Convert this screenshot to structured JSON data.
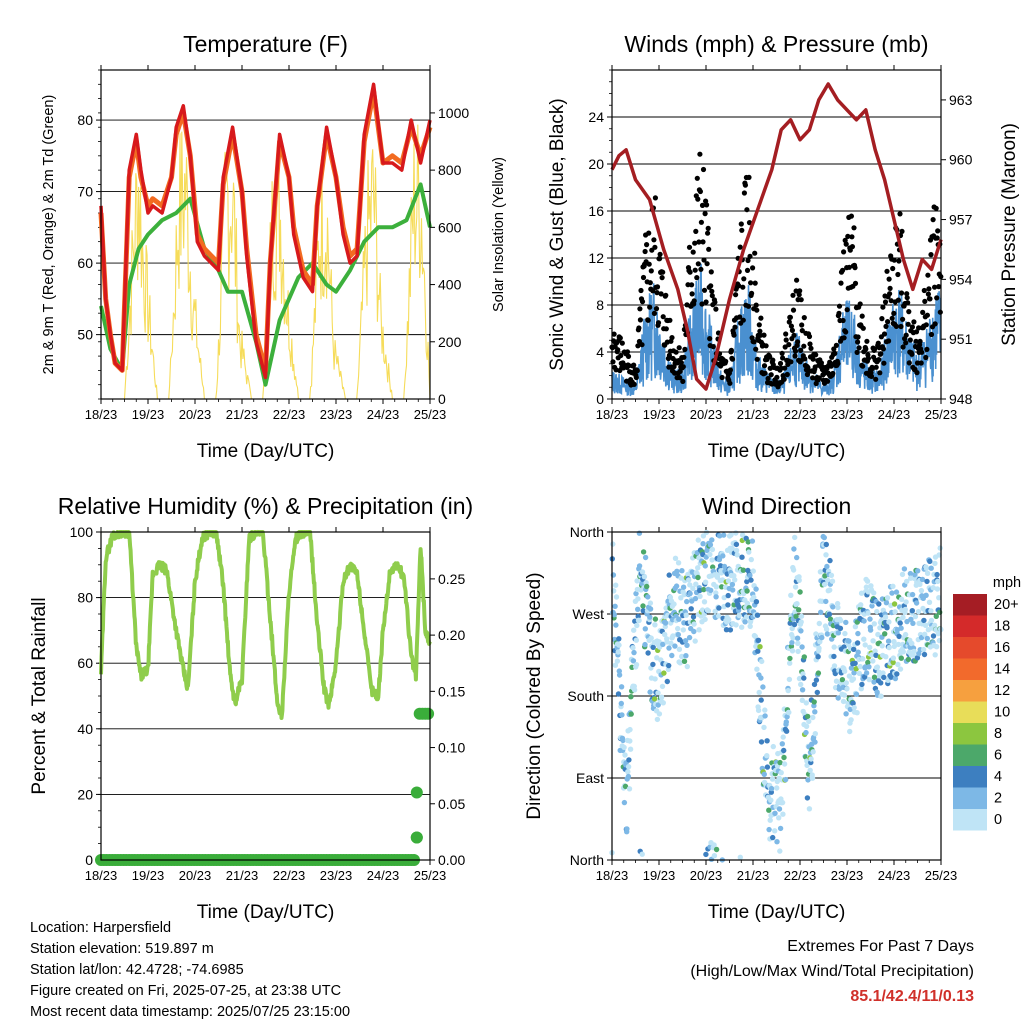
{
  "time_ticks": [
    "18/23",
    "19/23",
    "20/23",
    "21/23",
    "22/23",
    "23/23",
    "24/23",
    "25/23"
  ],
  "colors": {
    "temp2m": "#d7191c",
    "temp9m": "#f26b21",
    "dewpoint": "#3cb03c",
    "solar": "#f6dc5a",
    "gust": "#000000",
    "wind": "#4a90d0",
    "pressure": "#a41e22",
    "rh": "#8fcd4c",
    "precip": "#3aad3a",
    "extremes": "#d0302a"
  },
  "chart_data": [
    {
      "type": "line",
      "title": "Temperature (F)",
      "xlabel": "Time (Day/UTC)",
      "ylabel": "2m & 9m T (Red, Orange) & 2m Td (Green)",
      "y2label": "Solar Insolation (Yellow)",
      "ylim": [
        41,
        87
      ],
      "yticks": [
        50,
        60,
        70,
        80
      ],
      "y2lim": [
        0,
        1150
      ],
      "y2ticks": [
        0,
        200,
        400,
        600,
        800,
        1000
      ],
      "x_ticklabels": [
        "18/23",
        "19/23",
        "20/23",
        "21/23",
        "22/23",
        "23/23",
        "24/23",
        "25/23"
      ],
      "grid": true,
      "series": [
        {
          "x": [
            0,
            0.1,
            0.2,
            0.3,
            0.45,
            0.6,
            0.75,
            0.85,
            1.0,
            1.1,
            1.3,
            1.5,
            1.6,
            1.75,
            1.9,
            2.05,
            2.2,
            2.35,
            2.5,
            2.6,
            2.8,
            3.0,
            3.1,
            3.3,
            3.5,
            3.6,
            3.8,
            4.0,
            4.1,
            4.3,
            4.5,
            4.6,
            4.8,
            5.0,
            5.15,
            5.3,
            5.45,
            5.6,
            5.8,
            6.0,
            6.2,
            6.4,
            6.6,
            6.8,
            7.0
          ],
          "values": [
            68,
            55,
            50,
            46,
            45,
            73,
            78,
            73,
            67,
            68,
            67,
            72,
            79,
            82,
            75,
            63,
            61,
            60,
            59,
            72,
            79,
            70,
            61,
            49,
            44,
            60,
            78,
            72,
            64,
            58,
            56,
            68,
            79,
            72,
            64,
            60,
            61,
            78,
            85,
            74,
            74,
            73,
            80,
            74,
            80
          ]
        },
        {
          "x": [
            0,
            0.1,
            0.2,
            0.3,
            0.45,
            0.6,
            0.75,
            0.85,
            1.0,
            1.1,
            1.3,
            1.5,
            1.6,
            1.75,
            1.9,
            2.05,
            2.2,
            2.35,
            2.5,
            2.6,
            2.8,
            3.0,
            3.1,
            3.3,
            3.5,
            3.6,
            3.8,
            4.0,
            4.1,
            4.3,
            4.5,
            4.6,
            4.8,
            5.0,
            5.15,
            5.3,
            5.45,
            5.6,
            5.8,
            6.0,
            6.2,
            6.4,
            6.6,
            6.8,
            7.0
          ],
          "values": [
            67,
            55,
            50,
            46,
            45,
            72,
            77,
            72,
            68,
            69,
            68,
            72,
            78,
            81,
            75,
            64,
            62,
            61,
            60,
            71,
            78,
            70,
            62,
            50,
            45,
            60,
            77,
            72,
            65,
            59,
            57,
            68,
            78,
            72,
            65,
            61,
            62,
            77,
            84,
            74,
            75,
            74,
            79,
            75,
            79
          ]
        },
        {
          "x": [
            0,
            0.2,
            0.45,
            0.6,
            0.8,
            1.0,
            1.3,
            1.6,
            1.9,
            2.2,
            2.5,
            2.7,
            3.0,
            3.3,
            3.5,
            3.8,
            4.2,
            4.5,
            4.8,
            5.0,
            5.3,
            5.6,
            5.9,
            6.2,
            6.5,
            6.8,
            7.0
          ],
          "values": [
            54,
            48,
            45,
            57,
            62,
            64,
            66,
            67,
            69,
            62,
            59,
            56,
            56,
            49,
            43,
            52,
            58,
            60,
            57,
            56,
            59,
            63,
            65,
            65,
            66,
            71,
            65
          ]
        },
        {
          "x": [
            0,
            0.5,
            0.7,
            0.8,
            0.9,
            1.2,
            1.45,
            1.65,
            1.8,
            1.95,
            2.2,
            2.45,
            2.65,
            2.8,
            2.95,
            3.2,
            3.45,
            3.65,
            3.8,
            3.95,
            4.2,
            4.45,
            4.65,
            4.8,
            4.95,
            5.2,
            5.45,
            5.65,
            5.8,
            5.95,
            6.2,
            6.45,
            6.65,
            6.8,
            6.95,
            7.0
          ],
          "values": [
            0,
            0,
            800,
            1100,
            700,
            0,
            0,
            950,
            1080,
            500,
            0,
            0,
            1000,
            1050,
            300,
            0,
            0,
            900,
            1000,
            500,
            0,
            0,
            850,
            950,
            250,
            0,
            0,
            800,
            1050,
            400,
            0,
            0,
            1000,
            1050,
            300,
            0
          ]
        }
      ]
    },
    {
      "type": "scatter",
      "title": "Winds (mph) & Pressure (mb)",
      "xlabel": "Time (Day/UTC)",
      "ylabel": "Sonic Wind & Gust (Blue, Black)",
      "y2label": "Station Pressure (Maroon)",
      "ylim": [
        0,
        28
      ],
      "yticks": [
        0,
        4,
        8,
        12,
        16,
        20,
        24
      ],
      "y2lim": [
        948,
        964.5
      ],
      "y2ticks": [
        948,
        951,
        954,
        957,
        960,
        963
      ],
      "x_ticklabels": [
        "18/23",
        "19/23",
        "20/23",
        "21/23",
        "22/23",
        "23/23",
        "24/23",
        "25/23"
      ],
      "grid": true,
      "series": [
        {
          "x": [
            0,
            0.5,
            0.7,
            0.9,
            1.1,
            1.3,
            1.5,
            1.7,
            1.9,
            2.1,
            2.3,
            2.5,
            2.7,
            2.9,
            3.1,
            3.3,
            3.5,
            3.7,
            3.9,
            4.1,
            4.3,
            4.5,
            4.7,
            4.9,
            5.1,
            5.3,
            5.5,
            5.7,
            5.9,
            6.1,
            6.3,
            6.5,
            6.7,
            6.9,
            7.0
          ],
          "values": [
            5,
            2,
            10,
            13,
            8,
            4,
            3,
            12,
            16,
            9,
            3,
            2,
            10,
            15,
            6,
            3,
            2,
            4,
            8,
            5,
            3,
            2,
            3,
            9,
            12,
            6,
            3,
            4,
            9,
            12,
            7,
            4,
            8,
            14,
            12
          ]
        },
        {
          "x": [
            0,
            0.5,
            0.7,
            0.9,
            1.1,
            1.3,
            1.5,
            1.7,
            1.9,
            2.1,
            2.3,
            2.5,
            2.7,
            2.9,
            3.1,
            3.3,
            3.5,
            3.7,
            3.9,
            4.1,
            4.3,
            4.5,
            4.7,
            4.9,
            5.1,
            5.3,
            5.5,
            5.7,
            5.9,
            6.1,
            6.3,
            6.5,
            6.7,
            6.9,
            7.0
          ],
          "values": [
            2,
            1,
            6,
            8,
            5,
            2,
            2,
            7,
            9,
            5,
            2,
            1,
            6,
            8,
            3,
            2,
            1,
            2,
            5,
            3,
            2,
            1,
            2,
            6,
            7,
            3,
            2,
            2,
            6,
            8,
            5,
            3,
            5,
            8,
            7
          ]
        },
        {
          "x": [
            0,
            0.15,
            0.3,
            0.5,
            0.8,
            1.1,
            1.4,
            1.6,
            1.8,
            2.0,
            2.2,
            2.5,
            2.8,
            3.1,
            3.4,
            3.6,
            3.8,
            4.0,
            4.2,
            4.4,
            4.6,
            4.8,
            5.0,
            5.2,
            5.4,
            5.6,
            5.8,
            6.0,
            6.2,
            6.4,
            6.6,
            6.8,
            7.0
          ],
          "values": [
            959.5,
            960.2,
            960.5,
            959.0,
            958.0,
            955.5,
            953.5,
            951.5,
            949.0,
            948.5,
            950.0,
            953.0,
            955.5,
            957.5,
            959.5,
            961.5,
            962.0,
            961.0,
            961.5,
            963.0,
            963.8,
            963.0,
            962.5,
            962.0,
            962.5,
            960.5,
            959.0,
            957.0,
            955.0,
            953.5,
            955.0,
            954.5,
            956.0
          ]
        }
      ]
    },
    {
      "type": "line",
      "title": "Relative Humidity (%) & Precipitation (in)",
      "xlabel": "Time (Day/UTC)",
      "ylabel": "Percent & Total Rainfall",
      "ylim": [
        0,
        100
      ],
      "yticks": [
        0,
        20,
        40,
        60,
        80,
        100
      ],
      "y2lim": [
        0,
        0.2917
      ],
      "y2ticks": [
        0.0,
        0.05,
        0.1,
        0.15,
        0.2,
        0.25
      ],
      "y2ticklabels": [
        "0.00",
        "0.05",
        "0.10",
        "0.15",
        "0.20",
        "0.25"
      ],
      "x_ticklabels": [
        "18/23",
        "19/23",
        "20/23",
        "21/23",
        "22/23",
        "23/23",
        "24/23",
        "25/23"
      ],
      "grid": true,
      "series": [
        {
          "x": [
            0,
            0.1,
            0.25,
            0.4,
            0.6,
            0.75,
            0.85,
            1.0,
            1.1,
            1.25,
            1.4,
            1.6,
            1.75,
            1.85,
            2.0,
            2.15,
            2.3,
            2.45,
            2.6,
            2.75,
            2.85,
            3.0,
            3.15,
            3.3,
            3.45,
            3.6,
            3.75,
            3.85,
            4.0,
            4.15,
            4.3,
            4.45,
            4.6,
            4.75,
            4.85,
            5.0,
            5.15,
            5.3,
            5.45,
            5.6,
            5.75,
            5.9,
            6.0,
            6.15,
            6.3,
            6.45,
            6.6,
            6.7,
            6.8,
            6.9,
            7.0
          ],
          "values": [
            57,
            92,
            99,
            100,
            100,
            65,
            56,
            58,
            87,
            90,
            88,
            70,
            58,
            52,
            85,
            98,
            100,
            100,
            84,
            56,
            48,
            55,
            98,
            100,
            99,
            74,
            48,
            44,
            82,
            98,
            100,
            100,
            72,
            52,
            47,
            60,
            85,
            90,
            87,
            70,
            52,
            50,
            70,
            88,
            90,
            86,
            62,
            56,
            96,
            70,
            66
          ]
        },
        {
          "x": [
            0,
            6.7,
            6.72,
            6.74,
            6.76,
            7.0
          ],
          "values": [
            0,
            0,
            0.02,
            0.06,
            0.13,
            0.13
          ]
        }
      ]
    },
    {
      "type": "scatter",
      "title": "Wind Direction",
      "xlabel": "Time (Day/UTC)",
      "ylabel": "Direction (Colored By Speed)",
      "ylim": [
        0,
        360
      ],
      "yticks": [
        0,
        90,
        180,
        270,
        360
      ],
      "yticklabels": [
        "North",
        "East",
        "South",
        "West",
        "North"
      ],
      "x_ticklabels": [
        "18/23",
        "19/23",
        "20/23",
        "21/23",
        "22/23",
        "23/23",
        "24/23",
        "25/23"
      ],
      "grid": true,
      "legend": {
        "title": "mph",
        "position": "right",
        "labels": [
          "20+",
          "18",
          "16",
          "14",
          "12",
          "10",
          "8",
          "6",
          "4",
          "2",
          "0"
        ],
        "colors": [
          "#a51d24",
          "#d42a2a",
          "#e54a2c",
          "#f26a2c",
          "#f6a03f",
          "#e8dd59",
          "#8cc63f",
          "#4ca86a",
          "#3d7fc0",
          "#7db8e6",
          "#bfe4f6"
        ]
      },
      "series": [
        {
          "name": "Direction",
          "x": [
            0,
            0.3,
            0.6,
            0.8,
            1.0,
            1.3,
            1.6,
            1.9,
            2.1,
            2.4,
            2.7,
            3.0,
            3.3,
            3.6,
            3.9,
            4.2,
            4.5,
            4.8,
            5.1,
            5.4,
            5.7,
            6.0,
            6.3,
            6.6,
            6.9,
            7.0
          ],
          "values": [
            330,
            60,
            340,
            230,
            200,
            280,
            260,
            310,
            330,
            300,
            310,
            300,
            80,
            60,
            320,
            90,
            320,
            230,
            190,
            260,
            230,
            250,
            270,
            270,
            280,
            300
          ]
        }
      ]
    }
  ],
  "station": {
    "location": "Location: Harpersfield",
    "elevation": "Station elevation: 519.897 m",
    "latlon": "Station lat/lon: 42.4728; -74.6985",
    "created": "Figure created on Fri, 2025-07-25, at 23:38 UTC",
    "recent": "Most recent data timestamp: 2025/07/25 23:15:00"
  },
  "extremes": {
    "title": "Extremes For Past 7 Days",
    "subtitle": "(High/Low/Max Wind/Total Precipitation)",
    "values": "85.1/42.4/11/0.13"
  }
}
